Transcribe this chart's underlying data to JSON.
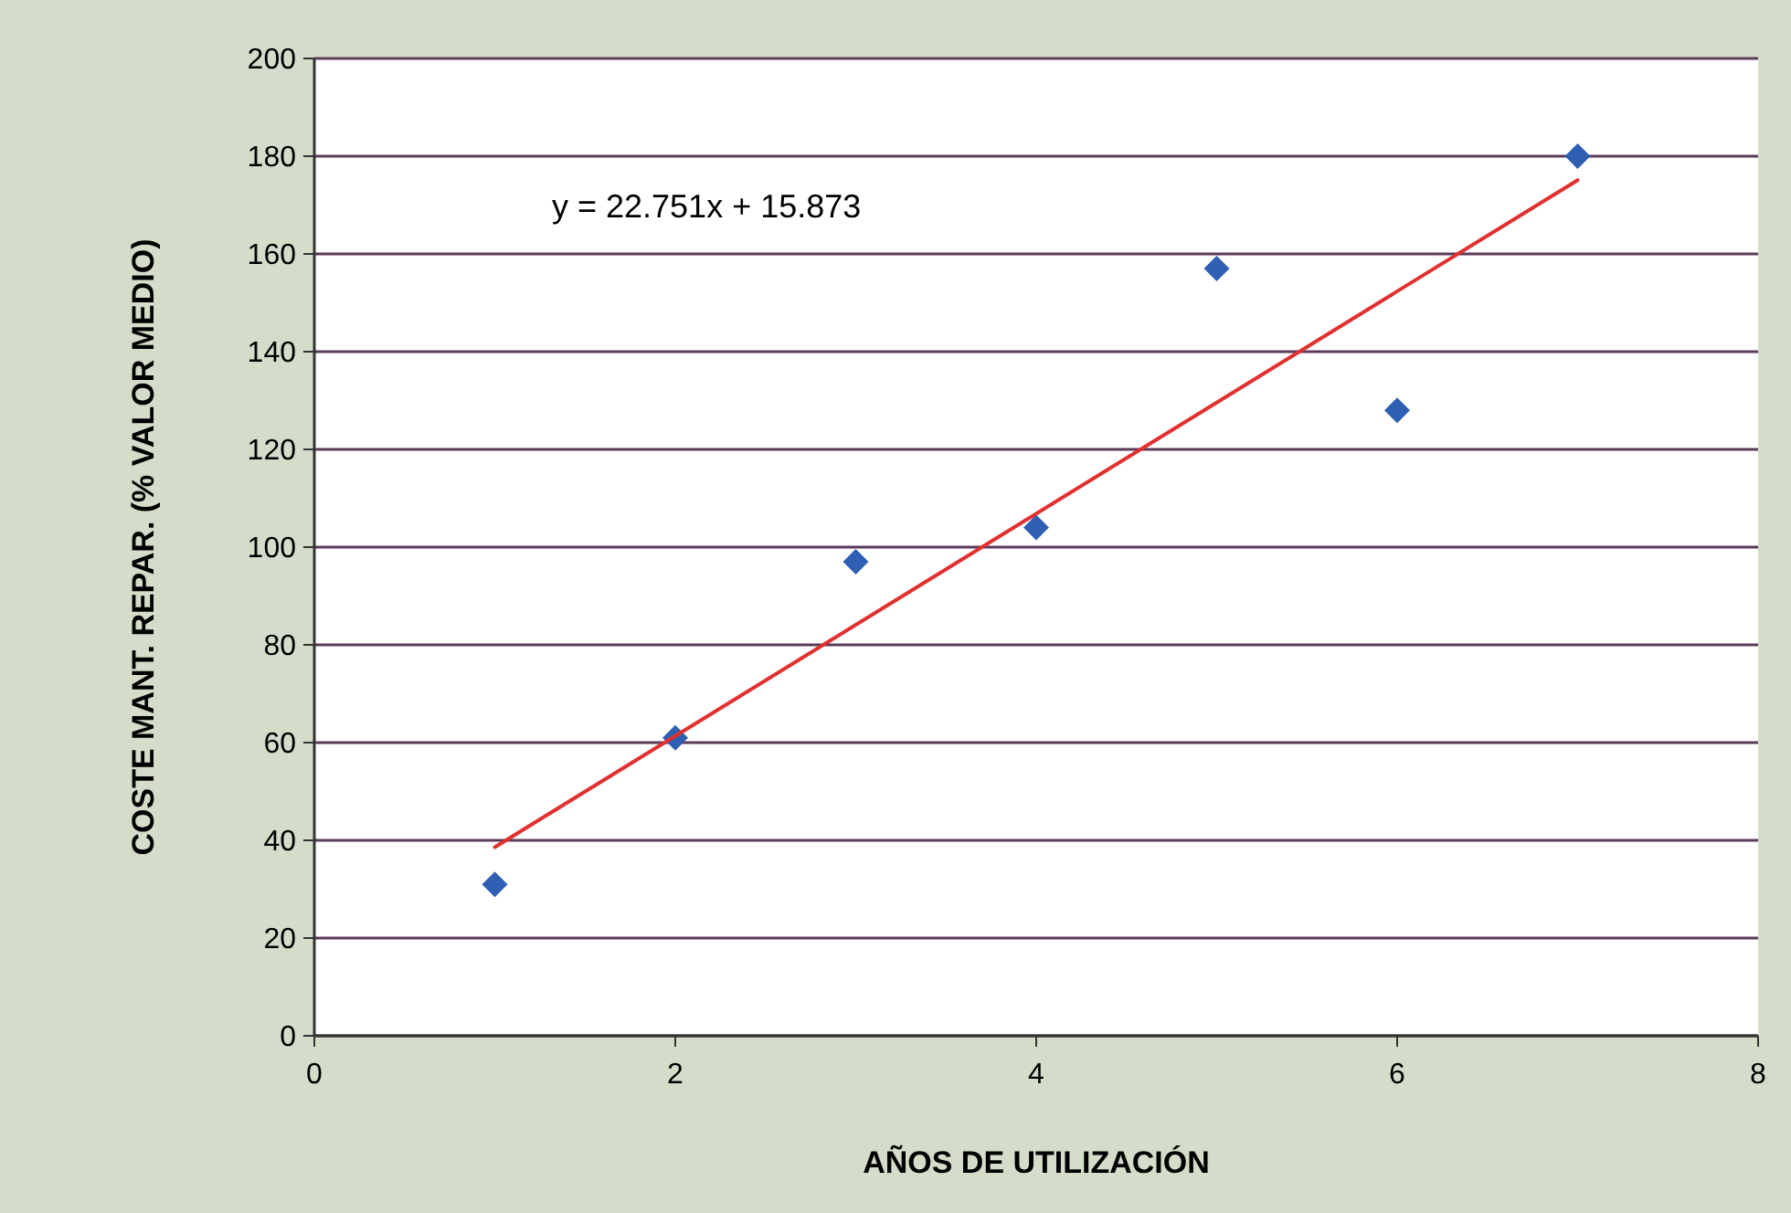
{
  "chart_data": {
    "type": "scatter",
    "xlabel": "AÑOS DE UTILIZACIÓN",
    "ylabel": "COSTE MANT. REPAR. (% VALOR MEDIO)",
    "annotations": [
      "y = 22.751x + 15.873"
    ],
    "x": [
      1,
      2,
      3,
      4,
      5,
      6,
      7
    ],
    "series": [
      {
        "color": "#2f5fb3",
        "values": [
          31,
          61,
          97,
          104,
          157,
          128,
          180
        ],
        "marker": "diamond"
      },
      {
        "type": "line",
        "color": "#e03030",
        "x": [
          1,
          7
        ],
        "values": [
          38.6,
          175.1
        ],
        "marker": "none"
      }
    ],
    "xlim": [
      0,
      8
    ],
    "xticks": [
      0,
      2,
      4,
      6,
      8
    ],
    "ylim": [
      0,
      200
    ],
    "yticks": [
      0,
      20,
      40,
      60,
      80,
      100,
      120,
      140,
      160,
      180,
      200
    ],
    "grid": "y"
  }
}
